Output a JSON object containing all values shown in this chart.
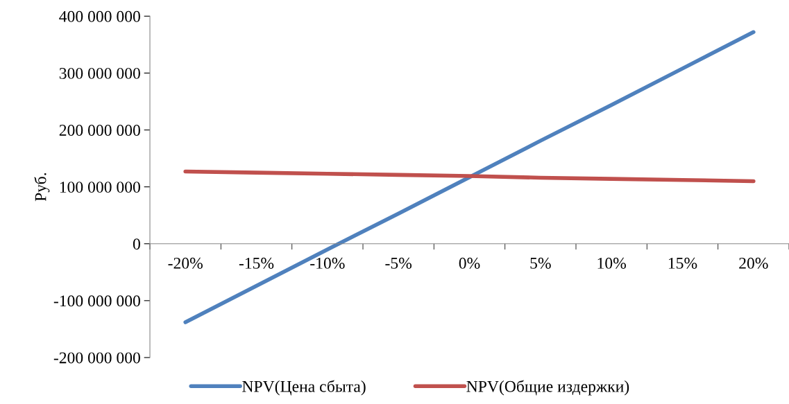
{
  "chart_data": {
    "type": "line",
    "ylabel": "Руб.",
    "categories": [
      "-20%",
      "-15%",
      "-10%",
      "-5%",
      "0%",
      "5%",
      "10%",
      "15%",
      "20%"
    ],
    "series": [
      {
        "name": "NPV(Цена сбыта)",
        "color": "#4f81bd",
        "values": [
          -138000000,
          -74000000,
          -10000000,
          53000000,
          117000000,
          181000000,
          244000000,
          308000000,
          372000000
        ]
      },
      {
        "name": "NPV(Общие издержки)",
        "color": "#c0504d",
        "values": [
          127000000,
          125000000,
          123000000,
          121000000,
          119000000,
          116000000,
          114000000,
          112000000,
          110000000
        ]
      }
    ],
    "ylim": [
      -200000000,
      400000000
    ],
    "yticks": [
      {
        "value": -200000000,
        "label": "-200 000 000"
      },
      {
        "value": -100000000,
        "label": "-100 000 000"
      },
      {
        "value": 0,
        "label": "0"
      },
      {
        "value": 100000000,
        "label": "100 000 000"
      },
      {
        "value": 200000000,
        "label": "200 000 000"
      },
      {
        "value": 300000000,
        "label": "300 000 000"
      },
      {
        "value": 400000000,
        "label": "400 000 000"
      }
    ],
    "grid": false,
    "legend": "bottom",
    "marker": "none",
    "line_style": "solid"
  }
}
